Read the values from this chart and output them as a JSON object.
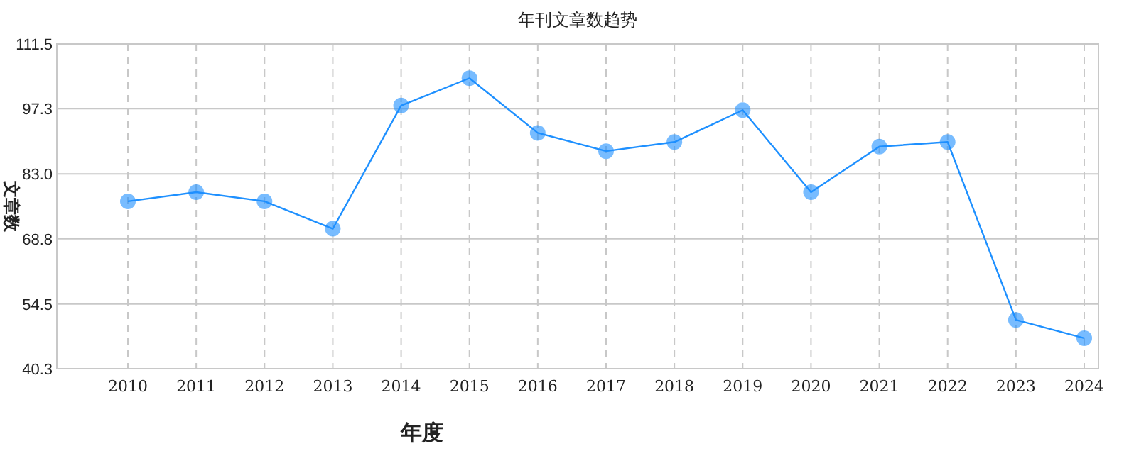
{
  "chart_data": {
    "type": "line",
    "title": "年刊文章数趋势",
    "xlabel": "年度",
    "ylabel": "文章数",
    "categories": [
      "2010",
      "2011",
      "2012",
      "2013",
      "2014",
      "2015",
      "2016",
      "2017",
      "2018",
      "2019",
      "2020",
      "2021",
      "2022",
      "2023",
      "2024"
    ],
    "values": [
      77,
      79,
      77,
      71,
      98,
      104,
      92,
      88,
      90,
      97,
      79,
      89,
      90,
      51,
      47
    ],
    "color": "#1e90ff",
    "marker": "circle",
    "grid": true,
    "ylim": [
      40.3,
      111.5
    ],
    "yticks": [
      40.3,
      54.5,
      68.8,
      {
        "value": 83,
        "label": "83.0"
      },
      97.3,
      111.5
    ]
  }
}
